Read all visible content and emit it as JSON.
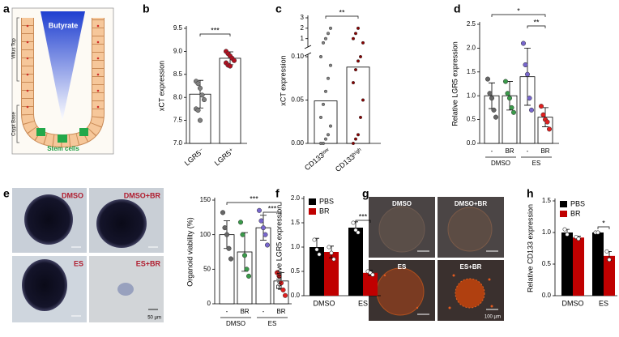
{
  "panel_labels": [
    "a",
    "b",
    "c",
    "d",
    "e",
    "f",
    "g",
    "h"
  ],
  "diagram_a": {
    "top_label": "Butyrate",
    "villus_label": "Villus Top",
    "crypt_label": "Crypt Base",
    "stem_label": "Stem cells"
  },
  "images_e": {
    "labels": [
      "DMSO",
      "DMSO+BR",
      "ES",
      "ES+BR"
    ],
    "scale_bar": "50 µm"
  },
  "images_g": {
    "labels": [
      "DMSO",
      "DMSO+BR",
      "ES",
      "ES+BR"
    ],
    "scale_bar": "100 µm"
  },
  "chart_data": [
    {
      "type": "bar",
      "ylabel": "xCT expression",
      "categories": [
        "LGR5⁻",
        "LGR5⁺"
      ],
      "values": [
        8.07,
        8.85
      ],
      "errors": [
        0.3,
        0.14
      ],
      "points": [
        [
          8.35,
          8.3,
          8.2,
          8.05,
          7.95,
          7.75,
          7.72,
          7.5
        ],
        [
          9.0,
          8.95,
          8.9,
          8.85,
          8.8,
          8.75,
          8.7,
          8.68
        ]
      ],
      "bar_color": "#ffffff",
      "point_colors": [
        "#808080",
        "#b01020"
      ],
      "ylim": [
        7,
        9.5
      ],
      "yticks": [
        {
          "value": 7,
          "label": "7.0"
        },
        7.5,
        {
          "value": 8,
          "label": "8.0"
        },
        8.5,
        {
          "value": 9,
          "label": "9.0"
        },
        9.5
      ],
      "significance": [
        "***"
      ]
    },
    {
      "type": "bar",
      "ylabel": "xCT expression",
      "categories": [
        "CD133ˡᵒʷ",
        "CD133ʰⁱᵍʰ"
      ],
      "values": [
        0.049,
        0.088
      ],
      "points": [
        [
          0,
          0,
          0.005,
          0.01,
          0.02,
          0.03,
          0.045,
          0.06,
          0.075,
          0.09,
          0.1,
          0.6,
          1.0,
          1.5,
          2.0
        ],
        [
          0,
          0.005,
          0.01,
          0.03,
          0.05,
          0.07,
          0.085,
          0.095,
          0.1,
          0.6,
          1.0,
          1.5,
          2.0
        ]
      ],
      "bar_color": "#ffffff",
      "point_colors": [
        "#808080",
        "#8b0000"
      ],
      "ylim": [
        0,
        0.1
      ],
      "yticks": [
        {
          "value": 0,
          "label": "0.00"
        },
        0.05,
        {
          "value": 0.1,
          "label": "0.10"
        }
      ],
      "ylim_upper": [
        0.2,
        3
      ],
      "yticks_upper": [
        1,
        2,
        3
      ],
      "significance": [
        "**"
      ]
    },
    {
      "type": "bar",
      "ylabel": "Relative LGR5 expression",
      "categories": [
        "-",
        "BR",
        "-",
        "BR"
      ],
      "groups": [
        "DMSO",
        "ES"
      ],
      "values": [
        1.0,
        1.0,
        1.4,
        0.55
      ],
      "errors": [
        0.27,
        0.3,
        0.6,
        0.2
      ],
      "points": [
        [
          1.35,
          1.05,
          0.95,
          0.7,
          0.55
        ],
        [
          1.3,
          1.05,
          0.95,
          0.75,
          0.65
        ],
        [
          2.1,
          1.65,
          1.45,
          0.95,
          0.7
        ],
        [
          0.78,
          0.6,
          0.5,
          0.45,
          0.3
        ]
      ],
      "bar_color": "#ffffff",
      "point_colors": [
        "#666666",
        "#3a9a4a",
        "#7766cc",
        "#e02020"
      ],
      "ylim": [
        0,
        2.5
      ],
      "yticks": [
        {
          "value": 0,
          "label": "0.0"
        },
        0.5,
        {
          "value": 1,
          "label": "1.0"
        },
        1.5,
        {
          "value": 2,
          "label": "2.0"
        },
        2.5
      ],
      "significance": [
        "*",
        "**"
      ]
    },
    {
      "type": "bar",
      "ylabel": "Organoid viability (%)",
      "categories": [
        "-",
        "BR",
        "-",
        "BR"
      ],
      "groups": [
        "DMSO",
        "ES"
      ],
      "values": [
        100,
        75,
        110,
        33
      ],
      "errors": [
        20,
        28,
        18,
        12
      ],
      "points": [
        [
          132,
          110,
          100,
          80,
          65
        ],
        [
          118,
          100,
          70,
          50,
          40
        ],
        [
          135,
          120,
          110,
          100,
          85
        ],
        [
          45,
          40,
          30,
          20,
          12
        ]
      ],
      "bar_color": "#ffffff",
      "point_colors": [
        "#666666",
        "#3a9a4a",
        "#7766cc",
        "#e02020"
      ],
      "ylim": [
        0,
        150
      ],
      "yticks": [
        0,
        50,
        100,
        150
      ],
      "significance": [
        "***",
        "***"
      ]
    },
    {
      "type": "grouped_bar",
      "ylabel": "Relative LGR5 expression",
      "categories": [
        "DMSO",
        "ES"
      ],
      "legend": "upper left",
      "series": [
        {
          "name": "PBS",
          "color": "#000000",
          "values": [
            1.0,
            1.4
          ],
          "errors": [
            0.18,
            0.12
          ],
          "points": [
            [
              1.15,
              0.95,
              0.85
            ],
            [
              1.5,
              1.35,
              1.3
            ]
          ]
        },
        {
          "name": "BR",
          "color": "#c00000",
          "values": [
            0.9,
            0.47
          ],
          "errors": [
            0.12,
            0.05
          ],
          "points": [
            [
              1.0,
              0.88,
              0.75
            ],
            [
              0.5,
              0.47,
              0.43
            ]
          ]
        }
      ],
      "ylim": [
        0,
        2
      ],
      "yticks": [
        {
          "value": 0,
          "label": "0.0"
        },
        0.5,
        {
          "value": 1,
          "label": "1.0"
        },
        1.5,
        {
          "value": 2,
          "label": "2.0"
        }
      ],
      "significance": [
        "***"
      ]
    },
    {
      "type": "grouped_bar",
      "ylabel": "Relative CD133 expression",
      "categories": [
        "DMSO",
        "ES"
      ],
      "legend": "upper left",
      "series": [
        {
          "name": "PBS",
          "color": "#000000",
          "values": [
            1.0,
            1.0
          ],
          "errors": [
            0.05,
            0.01
          ],
          "points": [
            [
              1.05,
              0.97
            ],
            [
              1.0,
              1.0
            ]
          ]
        },
        {
          "name": "BR",
          "color": "#c00000",
          "values": [
            0.92,
            0.63
          ],
          "errors": [
            0.02,
            0.07
          ],
          "points": [
            [
              0.93,
              0.9
            ],
            [
              0.7,
              0.57
            ]
          ]
        }
      ],
      "ylim": [
        0,
        1.5
      ],
      "yticks": [
        {
          "value": 0,
          "label": "0.0"
        },
        0.5,
        {
          "value": 1,
          "label": "1.0"
        },
        1.5
      ],
      "significance": [
        "*"
      ]
    }
  ]
}
